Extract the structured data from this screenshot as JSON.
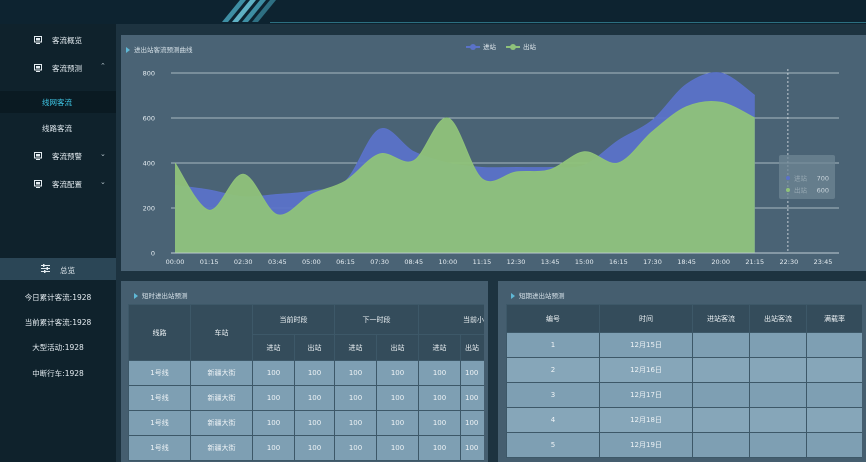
{
  "sidebar": {
    "items": [
      {
        "label": "客流概览",
        "icon": "monitor-icon"
      },
      {
        "label": "客流预测",
        "icon": "monitor-icon",
        "expanded": true
      },
      {
        "label": "线网客流",
        "sub": true,
        "active": true
      },
      {
        "label": "线路客流",
        "sub": true
      },
      {
        "label": "客流预警",
        "icon": "monitor-icon"
      },
      {
        "label": "客流配置",
        "icon": "monitor-icon"
      }
    ],
    "summary_title": "总览",
    "stats": [
      "今日累计客流:1928",
      "当前累计客流:1928",
      "大型活动:1928",
      "中断行车:1928"
    ]
  },
  "chart_panel": {
    "title": "进出站客流预测曲线"
  },
  "chart_data": {
    "type": "area",
    "categories": [
      "00:00",
      "01:15",
      "02:30",
      "03:45",
      "05:00",
      "06:15",
      "07:30",
      "08:45",
      "10:00",
      "11:15",
      "12:30",
      "13:45",
      "15:00",
      "16:15",
      "17:30",
      "18:45",
      "20:00",
      "21:15",
      "22:30",
      "23:45"
    ],
    "ylim": [
      0,
      800
    ],
    "yticks": [
      0,
      200,
      400,
      600,
      800
    ],
    "legend_position": "top-center",
    "grid": true,
    "series": [
      {
        "name": "进站",
        "color": "#5a72c8",
        "values": [
          300,
          280,
          250,
          260,
          275,
          320,
          550,
          450,
          400,
          380,
          380,
          380,
          390,
          500,
          590,
          750,
          800,
          700,
          null,
          null
        ]
      },
      {
        "name": "出站",
        "color": "#8fc27a",
        "values": [
          400,
          190,
          350,
          170,
          260,
          320,
          440,
          410,
          600,
          330,
          360,
          370,
          450,
          400,
          540,
          650,
          670,
          600,
          null,
          null
        ]
      }
    ],
    "tooltip": {
      "rows": [
        {
          "label": "进站",
          "value": "700"
        },
        {
          "label": "出站",
          "value": "600"
        }
      ]
    }
  },
  "table_left": {
    "title": "短时进出站预测",
    "headers": {
      "line": "线路",
      "station": "车站",
      "cur": "当前时段",
      "next": "下一时段",
      "third": "当前小时",
      "in": "进站",
      "out": "出站"
    },
    "rows": [
      [
        "1号线",
        "新疆大街",
        "100",
        "100",
        "100",
        "100",
        "100",
        "100"
      ],
      [
        "1号线",
        "新疆大街",
        "100",
        "100",
        "100",
        "100",
        "100",
        "100"
      ],
      [
        "1号线",
        "新疆大街",
        "100",
        "100",
        "100",
        "100",
        "100",
        "100"
      ],
      [
        "1号线",
        "新疆大街",
        "100",
        "100",
        "100",
        "100",
        "100",
        "100"
      ]
    ]
  },
  "table_right": {
    "title": "短期进出站预测",
    "headers": [
      "编号",
      "时间",
      "进站客流",
      "出站客流",
      "满载率"
    ],
    "rows": [
      [
        "1",
        "12月15日",
        "",
        "",
        ""
      ],
      [
        "2",
        "12月16日",
        "",
        "",
        ""
      ],
      [
        "3",
        "12月17日",
        "",
        "",
        ""
      ],
      [
        "4",
        "12月18日",
        "",
        "",
        ""
      ],
      [
        "5",
        "12月19日",
        "",
        "",
        ""
      ]
    ]
  }
}
